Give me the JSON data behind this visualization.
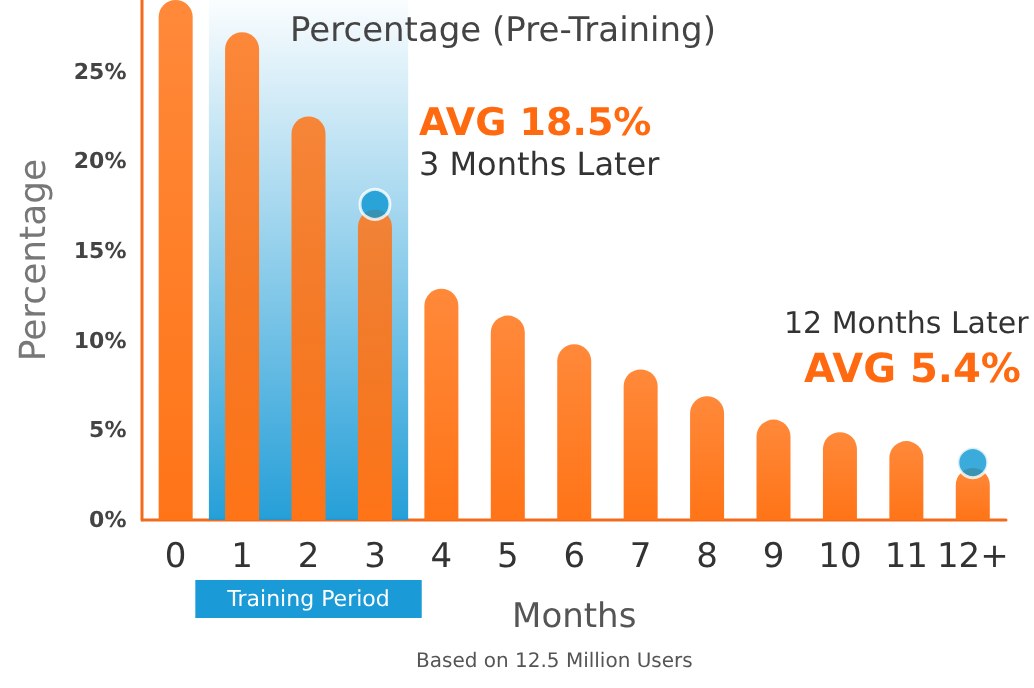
{
  "chart_data": {
    "type": "bar",
    "title": "Percentage (Pre-Training)",
    "xlabel": "Months",
    "ylabel": "Percentage",
    "categories": [
      "0",
      "1",
      "2",
      "3",
      "4",
      "5",
      "6",
      "7",
      "8",
      "9",
      "10",
      "11",
      "12+"
    ],
    "series": [
      {
        "color": "#ff7417",
        "values": [
          29,
          27.2,
          22.5,
          17.3,
          12.9,
          11.4,
          9.8,
          8.4,
          6.9,
          5.6,
          4.9,
          4.4,
          2.9
        ]
      },
      {
        "type": "scatter",
        "color": "#0a96d2",
        "x": [
          "3",
          "12+"
        ],
        "values": [
          17.6,
          3.2
        ]
      }
    ],
    "annotations": [
      {
        "text": "AVG 18.5%",
        "x": "3",
        "y": 17.6
      },
      {
        "text": "3 Months Later",
        "x": "3",
        "y": 17.6
      },
      "12 Months Later",
      "AVG 5.4%",
      "Based on 12.5 Million Users"
    ],
    "bands": [
      {
        "axis": "x",
        "from": "1",
        "to": "3",
        "label": "Training Period",
        "color": "#1a9ad6"
      }
    ],
    "ylim": [
      0,
      29
    ],
    "yticks": [
      {
        "value": 0,
        "label": "0%"
      },
      {
        "value": 5,
        "label": "5%"
      },
      {
        "value": 10,
        "label": "10%"
      },
      {
        "value": 15,
        "label": "15%"
      },
      {
        "value": 20,
        "label": "20%"
      },
      {
        "value": 25,
        "label": "25%"
      }
    ],
    "grid": false,
    "marker": "circle"
  }
}
